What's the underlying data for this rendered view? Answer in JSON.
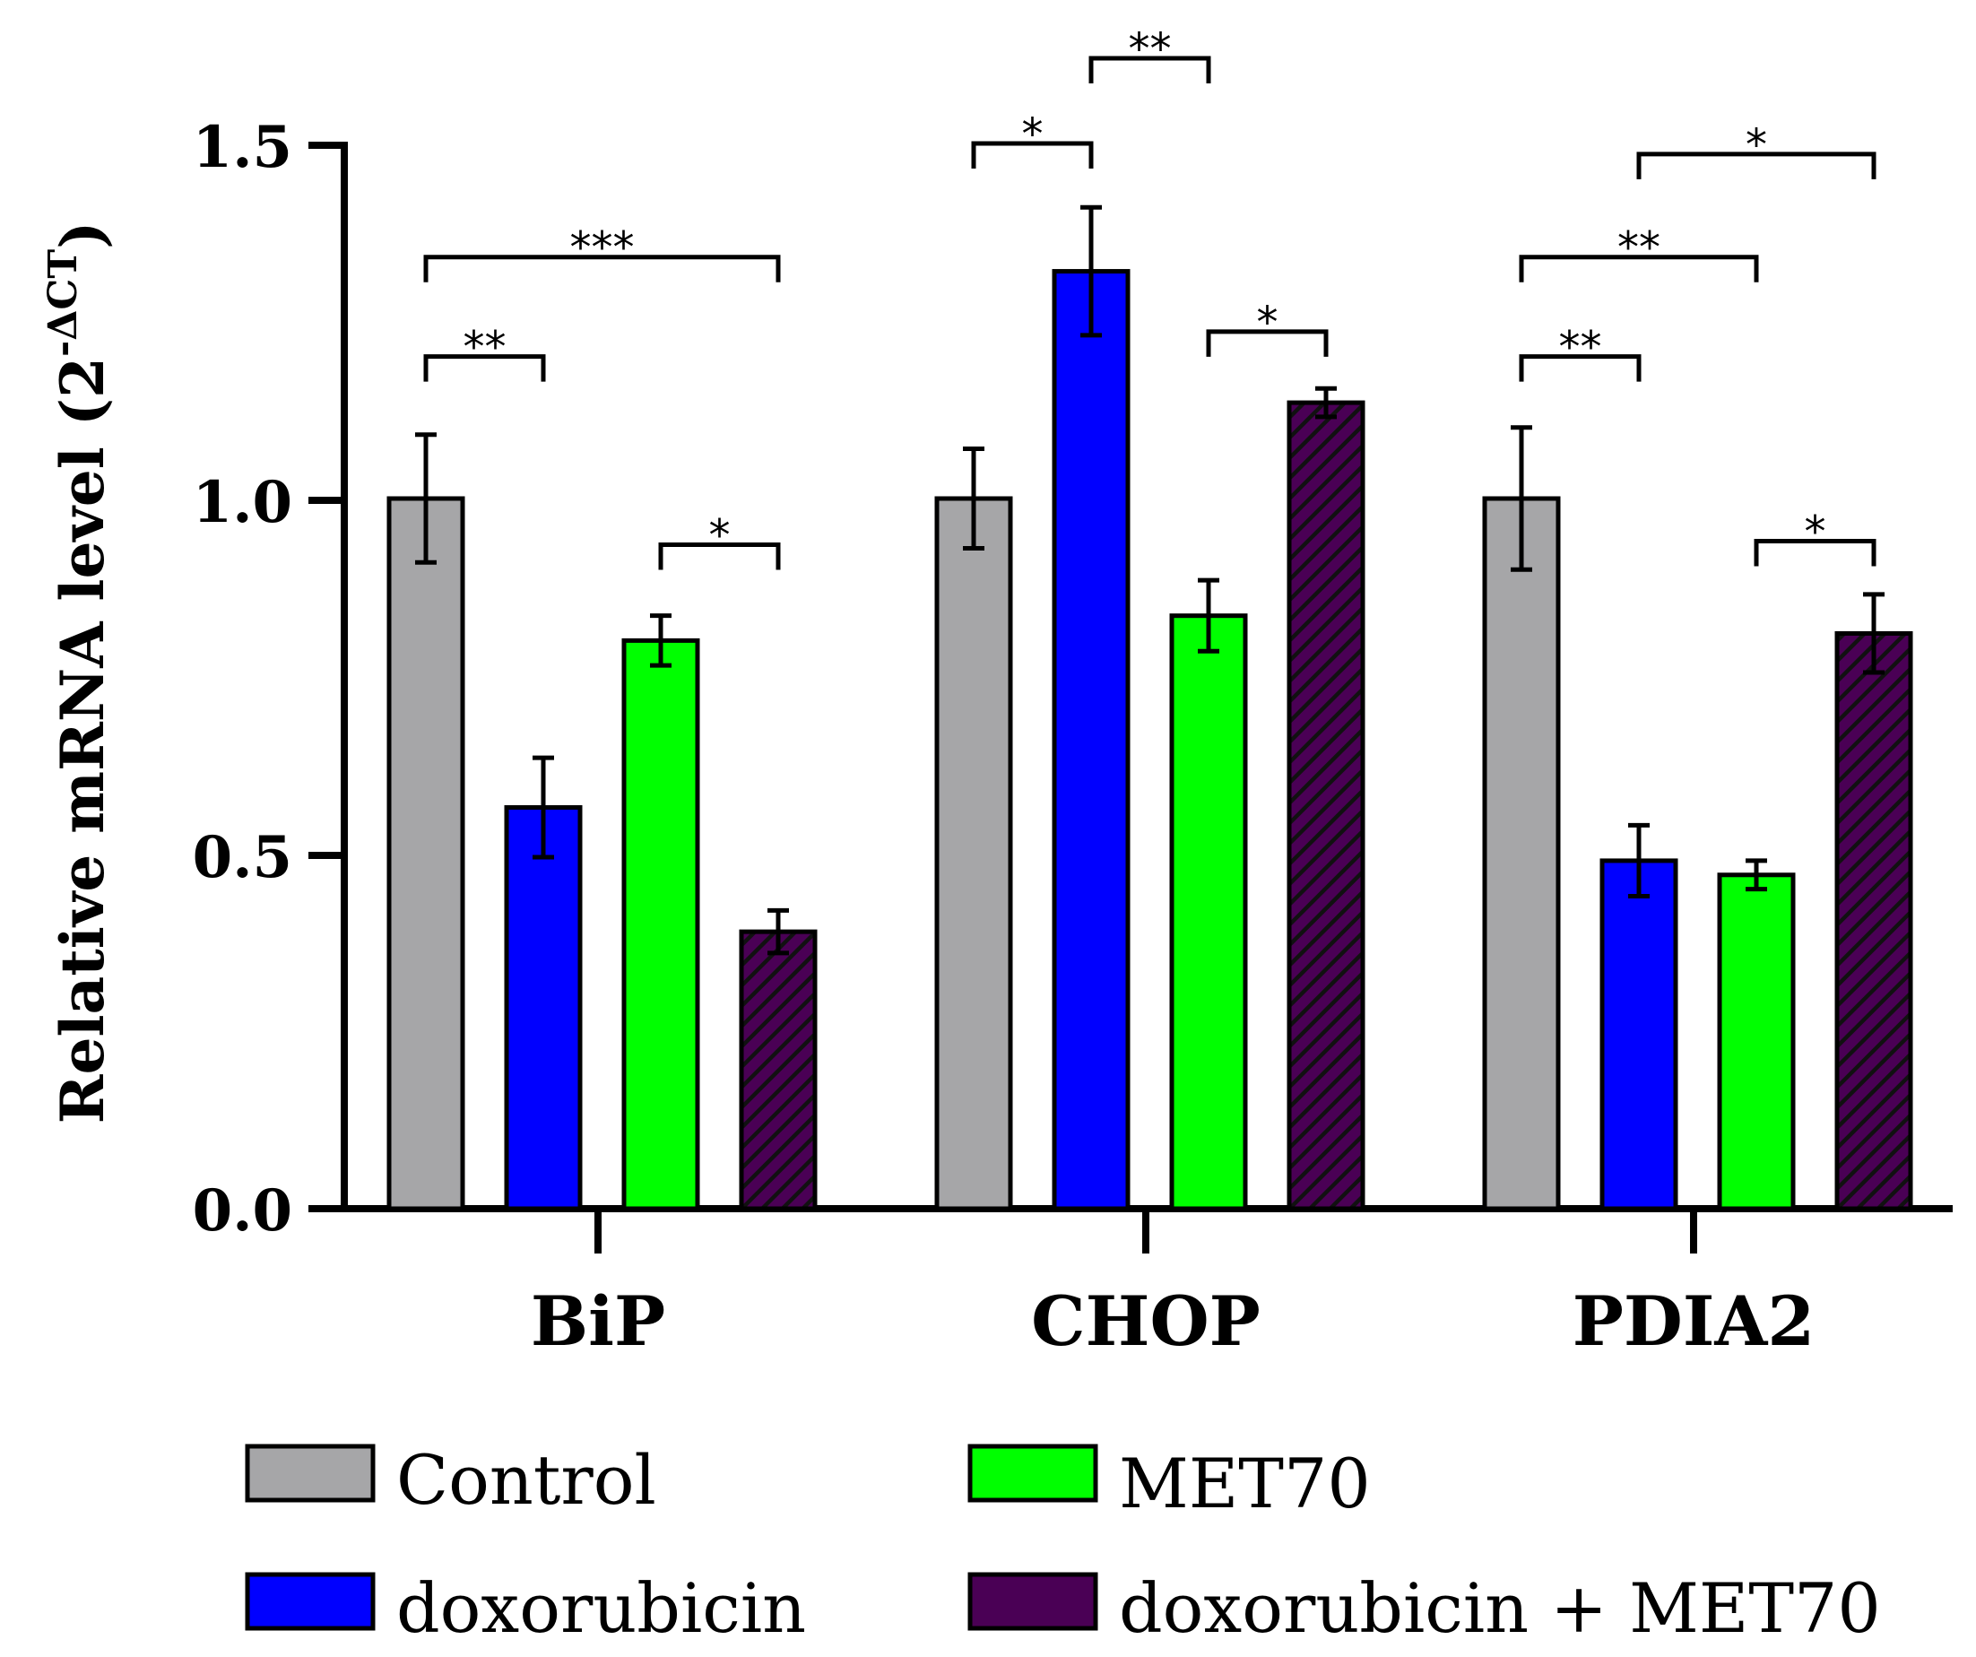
{
  "chart_data": {
    "type": "bar",
    "title": "",
    "xlabel": "",
    "ylabel": {
      "main": "Relative mRNA level (2",
      "superscript": "-ΔCT",
      "close": ")"
    },
    "ylim": [
      0,
      1.5
    ],
    "yticks": [
      "0.0",
      "0.5",
      "1.0",
      "1.5"
    ],
    "categories": [
      "BiP",
      "CHOP",
      "PDIA2"
    ],
    "series": [
      {
        "name": "Control",
        "color": "#a6a6a8",
        "hatch": false,
        "values": [
          1.0,
          1.0,
          1.0
        ],
        "errors": [
          0.09,
          0.07,
          0.1
        ]
      },
      {
        "name": "doxorubicin",
        "color": "#0000ff",
        "hatch": false,
        "values": [
          0.565,
          1.32,
          0.49
        ],
        "errors": [
          0.07,
          0.09,
          0.05
        ]
      },
      {
        "name": "MET70",
        "color": "#00ff00",
        "hatch": false,
        "values": [
          0.8,
          0.835,
          0.47
        ],
        "errors": [
          0.035,
          0.05,
          0.02
        ]
      },
      {
        "name": "doxorubicin + MET70",
        "color": "#4a0055",
        "hatch": true,
        "values": [
          0.39,
          1.135,
          0.81
        ],
        "errors": [
          0.03,
          0.02,
          0.055
        ]
      }
    ],
    "significance": [
      {
        "category": 0,
        "from": 0,
        "to": 1,
        "level": 1.2,
        "label": "**"
      },
      {
        "category": 0,
        "from": 0,
        "to": 3,
        "level": 1.34,
        "label": "***"
      },
      {
        "category": 0,
        "from": 2,
        "to": 3,
        "level": 0.935,
        "label": "*"
      },
      {
        "category": 1,
        "from": 0,
        "to": 1,
        "level": 1.5,
        "label": "*"
      },
      {
        "category": 1,
        "from": 1,
        "to": 2,
        "level": 1.62,
        "label": "**"
      },
      {
        "category": 1,
        "from": 2,
        "to": 3,
        "level": 1.235,
        "label": "*"
      },
      {
        "category": 2,
        "from": 0,
        "to": 1,
        "level": 1.2,
        "label": "**"
      },
      {
        "category": 2,
        "from": 0,
        "to": 2,
        "level": 1.34,
        "label": "**"
      },
      {
        "category": 2,
        "from": 1,
        "to": 3,
        "level": 1.485,
        "label": "*"
      },
      {
        "category": 2,
        "from": 2,
        "to": 3,
        "level": 0.94,
        "label": "*"
      }
    ],
    "legend": {
      "position": "bottom",
      "items": [
        "Control",
        "MET70",
        "doxorubicin",
        "doxorubicin + MET70"
      ]
    },
    "grid": false
  }
}
